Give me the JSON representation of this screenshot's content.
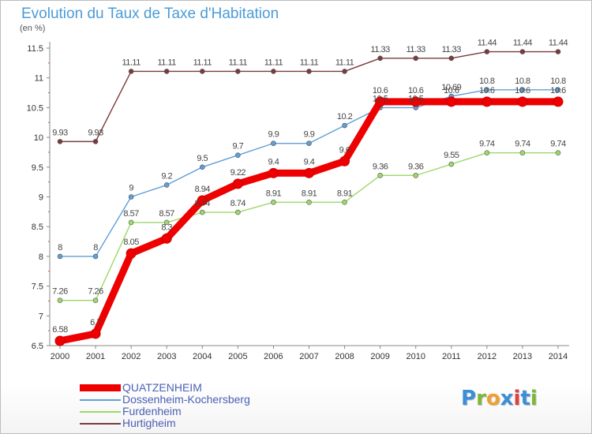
{
  "title": "Evolution du Taux de Taxe d'Habitation",
  "unit": "(en %)",
  "logo": {
    "letters": [
      "P",
      "r",
      "o",
      "x",
      "i",
      "t",
      "i"
    ],
    "colors": [
      "#3a8fd6",
      "#7cb83a",
      "#f0a030",
      "#3a8fd6",
      "#e04040",
      "#3a8fd6",
      "#7cb83a"
    ]
  },
  "chart_data": {
    "type": "line",
    "title": "Evolution du Taux de Taxe d'Habitation",
    "ylabel": "(en %)",
    "xlabel": "",
    "ylim": [
      6.5,
      11.5
    ],
    "yticks": [
      "6.5",
      "7",
      "7.5",
      "8",
      "8.5",
      "9",
      "9.5",
      "10",
      "10.5",
      "11",
      "11.5"
    ],
    "x": [
      "2000",
      "2001",
      "2002",
      "2003",
      "2004",
      "2005",
      "2006",
      "2007",
      "2008",
      "2009",
      "2010",
      "2011",
      "2012",
      "2013",
      "2014"
    ],
    "grid": false,
    "legend_position": "bottom-left",
    "series": [
      {
        "name": "QUATZENHEIM",
        "color": "#ee0000",
        "thick": true,
        "values": [
          6.58,
          6.7,
          8.05,
          8.3,
          8.94,
          9.22,
          9.4,
          9.4,
          9.6,
          10.6,
          10.6,
          10.6,
          10.6,
          10.6,
          10.6
        ],
        "labels": [
          "6.58",
          "6.7",
          "8.05",
          "8.3",
          "8.94",
          "9.22",
          "9.4",
          "9.4",
          "9.6",
          "10.6",
          "10.6",
          "10.6",
          "10.6",
          "10.6",
          "10.6"
        ]
      },
      {
        "name": "Dossenheim-Kochersberg",
        "color": "#5f9fd6",
        "thick": false,
        "values": [
          8,
          8,
          9,
          9.2,
          9.5,
          9.7,
          9.9,
          9.9,
          10.2,
          10.5,
          10.5,
          10.69,
          10.8,
          10.8,
          10.8
        ],
        "labels": [
          "8",
          "8",
          "9",
          "9.2",
          "9.5",
          "9.7",
          "9.9",
          "9.9",
          "10.2",
          "10.5",
          "10.5",
          "10.69",
          "10.8",
          "10.8",
          "10.8"
        ]
      },
      {
        "name": "Furdenheim",
        "color": "#9ed86a",
        "thick": false,
        "values": [
          7.26,
          7.26,
          8.57,
          8.57,
          8.74,
          8.74,
          8.91,
          8.91,
          8.91,
          9.36,
          9.36,
          9.55,
          9.74,
          9.74,
          9.74
        ],
        "labels": [
          "7.26",
          "7.26",
          "8.57",
          "8.57",
          "8.74",
          "8.74",
          "8.91",
          "8.91",
          "8.91",
          "9.36",
          "9.36",
          "9.55",
          "9.74",
          "9.74",
          "9.74"
        ]
      },
      {
        "name": "Hurtigheim",
        "color": "#7a3b3b",
        "thick": false,
        "values": [
          9.93,
          9.93,
          11.11,
          11.11,
          11.11,
          11.11,
          11.11,
          11.11,
          11.11,
          11.33,
          11.33,
          11.33,
          11.44,
          11.44,
          11.44
        ],
        "labels": [
          "9.93",
          "9.93",
          "11.11",
          "11.11",
          "11.11",
          "11.11",
          "11.11",
          "11.11",
          "11.11",
          "11.33",
          "11.33",
          "11.33",
          "11.44",
          "11.44",
          "11.44"
        ]
      }
    ]
  }
}
